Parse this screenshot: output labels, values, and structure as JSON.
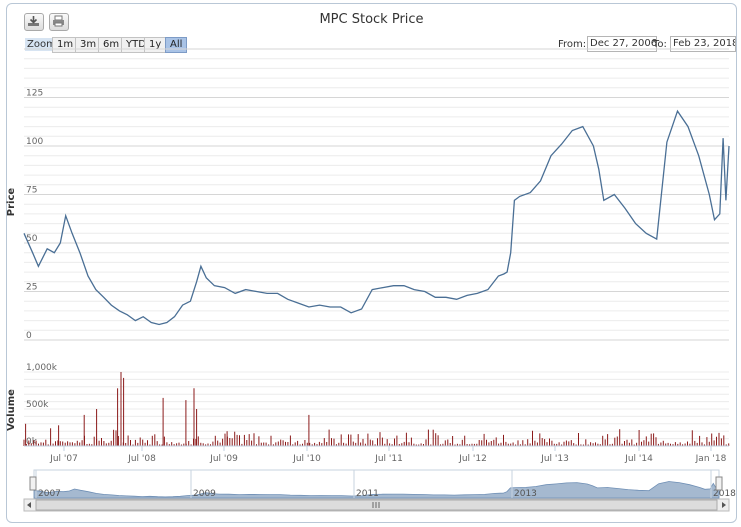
{
  "toolbar": {
    "download_icon": "download-icon",
    "print_icon": "print-icon"
  },
  "title": "MPC Stock Price",
  "zoom": {
    "label": "Zoom",
    "buttons": [
      "1m",
      "3m",
      "6m",
      "YTD",
      "1y",
      "All"
    ],
    "active": "All"
  },
  "range": {
    "from_label": "From:",
    "from_value": "Dec 27, 2006",
    "to_label": "To:",
    "to_value": "Feb 23, 2018"
  },
  "colors": {
    "price_line": "#4a6f95",
    "volume_bars": "#8b1a1a",
    "navigator_fill": "#a5b9d0",
    "selected_button": "#a9c3e6"
  },
  "chart_data": [
    {
      "type": "line",
      "title": "MPC Stock Price",
      "ylabel": "Price",
      "ylim": [
        0,
        150
      ],
      "yticks": [
        "0",
        "25",
        "50",
        "75",
        "100",
        "125"
      ],
      "grid": true,
      "x": [
        "2006-12-27",
        "2007-02-15",
        "2007-03-20",
        "2007-05-10",
        "2007-06-20",
        "2007-07-25",
        "2007-08-25",
        "2007-10-01",
        "2007-11-15",
        "2008-01-01",
        "2008-02-15",
        "2008-04-01",
        "2008-05-15",
        "2008-07-01",
        "2008-08-15",
        "2008-10-01",
        "2008-11-15",
        "2009-01-01",
        "2009-02-15",
        "2009-04-01",
        "2009-05-15",
        "2009-07-01",
        "2009-08-15",
        "2009-09-20",
        "2009-10-15",
        "2009-11-15",
        "2010-01-01",
        "2010-03-01",
        "2010-05-01",
        "2010-07-01",
        "2010-09-01",
        "2010-11-01",
        "2011-01-01",
        "2011-03-01",
        "2011-05-01",
        "2011-07-01",
        "2011-09-01",
        "2011-11-01",
        "2012-01-01",
        "2012-03-01",
        "2012-05-01",
        "2012-07-01",
        "2012-09-01",
        "2012-11-01",
        "2013-01-01",
        "2013-03-01",
        "2013-05-01",
        "2013-07-01",
        "2013-09-01",
        "2013-11-01",
        "2014-01-01",
        "2014-03-01",
        "2014-05-01",
        "2014-07-01",
        "2014-08-01",
        "2014-08-20",
        "2014-09-10",
        "2014-10-01",
        "2014-11-01",
        "2015-01-01",
        "2015-03-01",
        "2015-05-01",
        "2015-07-01",
        "2015-09-01",
        "2015-11-01",
        "2016-01-01",
        "2016-02-01",
        "2016-03-01",
        "2016-05-01",
        "2016-07-01",
        "2016-09-01",
        "2016-11-01",
        "2017-01-01",
        "2017-03-01",
        "2017-05-01",
        "2017-07-01",
        "2017-09-01",
        "2017-11-01",
        "2017-12-01",
        "2018-01-01",
        "2018-01-20",
        "2018-02-05",
        "2018-02-23"
      ],
      "series": [
        {
          "values": [
            55,
            45,
            38,
            47,
            45,
            50,
            64,
            55,
            45,
            33,
            26,
            22,
            18,
            15,
            13,
            10,
            12,
            9,
            8,
            9,
            12,
            18,
            20,
            30,
            38,
            32,
            28,
            27,
            24,
            26,
            25,
            24,
            24,
            21,
            19,
            17,
            18,
            17,
            17,
            14,
            16,
            26,
            27,
            28,
            28,
            26,
            25,
            22,
            22,
            21,
            23,
            24,
            26,
            33,
            34,
            35,
            45,
            72,
            74,
            76,
            82,
            95,
            101,
            108,
            110,
            100,
            88,
            72,
            75,
            68,
            60,
            55,
            52,
            102,
            118,
            110,
            95,
            75,
            62,
            65,
            104,
            72,
            100
          ]
        }
      ]
    },
    {
      "type": "bar",
      "ylabel": "Volume",
      "ylim": [
        0,
        1000000
      ],
      "yticks": [
        "0k",
        "500k",
        "1,000k"
      ],
      "grid": true,
      "xticks": [
        "Jul '07",
        "Jul '08",
        "Jul '09",
        "Jul '10",
        "Jul '11",
        "Jul '12",
        "Jul '13",
        "Jul '14",
        "Jan '18"
      ],
      "notable_bars": [
        {
          "x": "2007-01-05",
          "value": 300000
        },
        {
          "x": "2007-07-15",
          "value": 280000
        },
        {
          "x": "2007-12-10",
          "value": 420000
        },
        {
          "x": "2008-02-20",
          "value": 500000
        },
        {
          "x": "2008-06-20",
          "value": 780000
        },
        {
          "x": "2008-07-10",
          "value": 1000000
        },
        {
          "x": "2008-07-25",
          "value": 920000
        },
        {
          "x": "2009-03-10",
          "value": 650000
        },
        {
          "x": "2009-07-20",
          "value": 620000
        },
        {
          "x": "2009-09-05",
          "value": 780000
        },
        {
          "x": "2009-09-20",
          "value": 500000
        },
        {
          "x": "2010-03-15",
          "value": 200000
        },
        {
          "x": "2011-07-01",
          "value": 420000
        },
        {
          "x": "2013-01-15",
          "value": 180000
        }
      ],
      "baseline_range": [
        20000,
        260000
      ]
    },
    {
      "type": "area",
      "role": "navigator",
      "xticks": [
        "2007",
        "2009",
        "2011",
        "2013",
        "2018"
      ]
    }
  ]
}
